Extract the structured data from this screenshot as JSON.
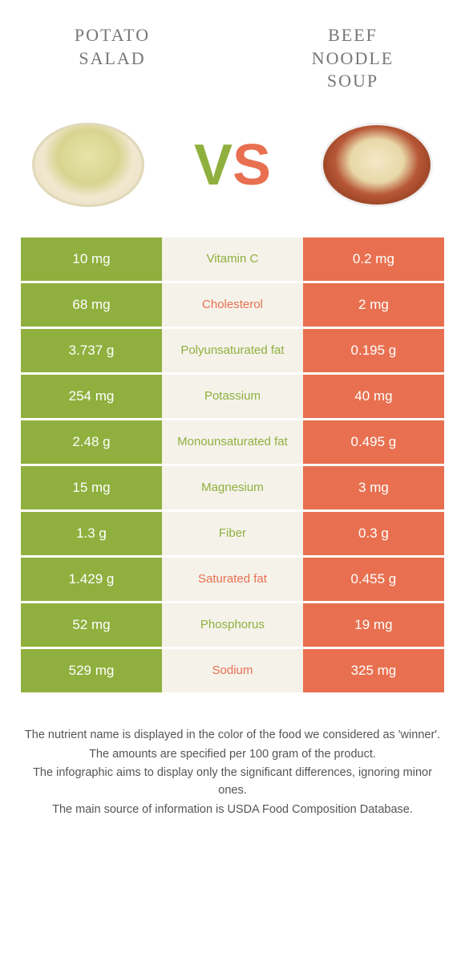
{
  "header": {
    "left_title_line1": "POTATO",
    "left_title_line2": "SALAD",
    "right_title_line1": "BEEF",
    "right_title_line2": "NOODLE",
    "right_title_line3": "SOUP",
    "vs_v": "V",
    "vs_s": "S"
  },
  "colors": {
    "left": "#8fb03e",
    "right": "#e87050",
    "mid_bg": "#f5f2ea"
  },
  "rows": [
    {
      "left": "10 mg",
      "label": "Vitamin C",
      "winner": "left",
      "right": "0.2 mg"
    },
    {
      "left": "68 mg",
      "label": "Cholesterol",
      "winner": "right",
      "right": "2 mg"
    },
    {
      "left": "3.737 g",
      "label": "Polyunsaturated fat",
      "winner": "left",
      "right": "0.195 g"
    },
    {
      "left": "254 mg",
      "label": "Potassium",
      "winner": "left",
      "right": "40 mg"
    },
    {
      "left": "2.48 g",
      "label": "Monounsaturated fat",
      "winner": "left",
      "right": "0.495 g"
    },
    {
      "left": "15 mg",
      "label": "Magnesium",
      "winner": "left",
      "right": "3 mg"
    },
    {
      "left": "1.3 g",
      "label": "Fiber",
      "winner": "left",
      "right": "0.3 g"
    },
    {
      "left": "1.429 g",
      "label": "Saturated fat",
      "winner": "right",
      "right": "0.455 g"
    },
    {
      "left": "52 mg",
      "label": "Phosphorus",
      "winner": "left",
      "right": "19 mg"
    },
    {
      "left": "529 mg",
      "label": "Sodium",
      "winner": "right",
      "right": "325 mg"
    }
  ],
  "footnotes": {
    "line1": "The nutrient name is displayed in the color of the food we considered as 'winner'.",
    "line2": "The amounts are specified per 100 gram of the product.",
    "line3": "The infographic aims to display only the significant differences, ignoring minor ones.",
    "line4": "The main source of information is USDA Food Composition Database."
  }
}
